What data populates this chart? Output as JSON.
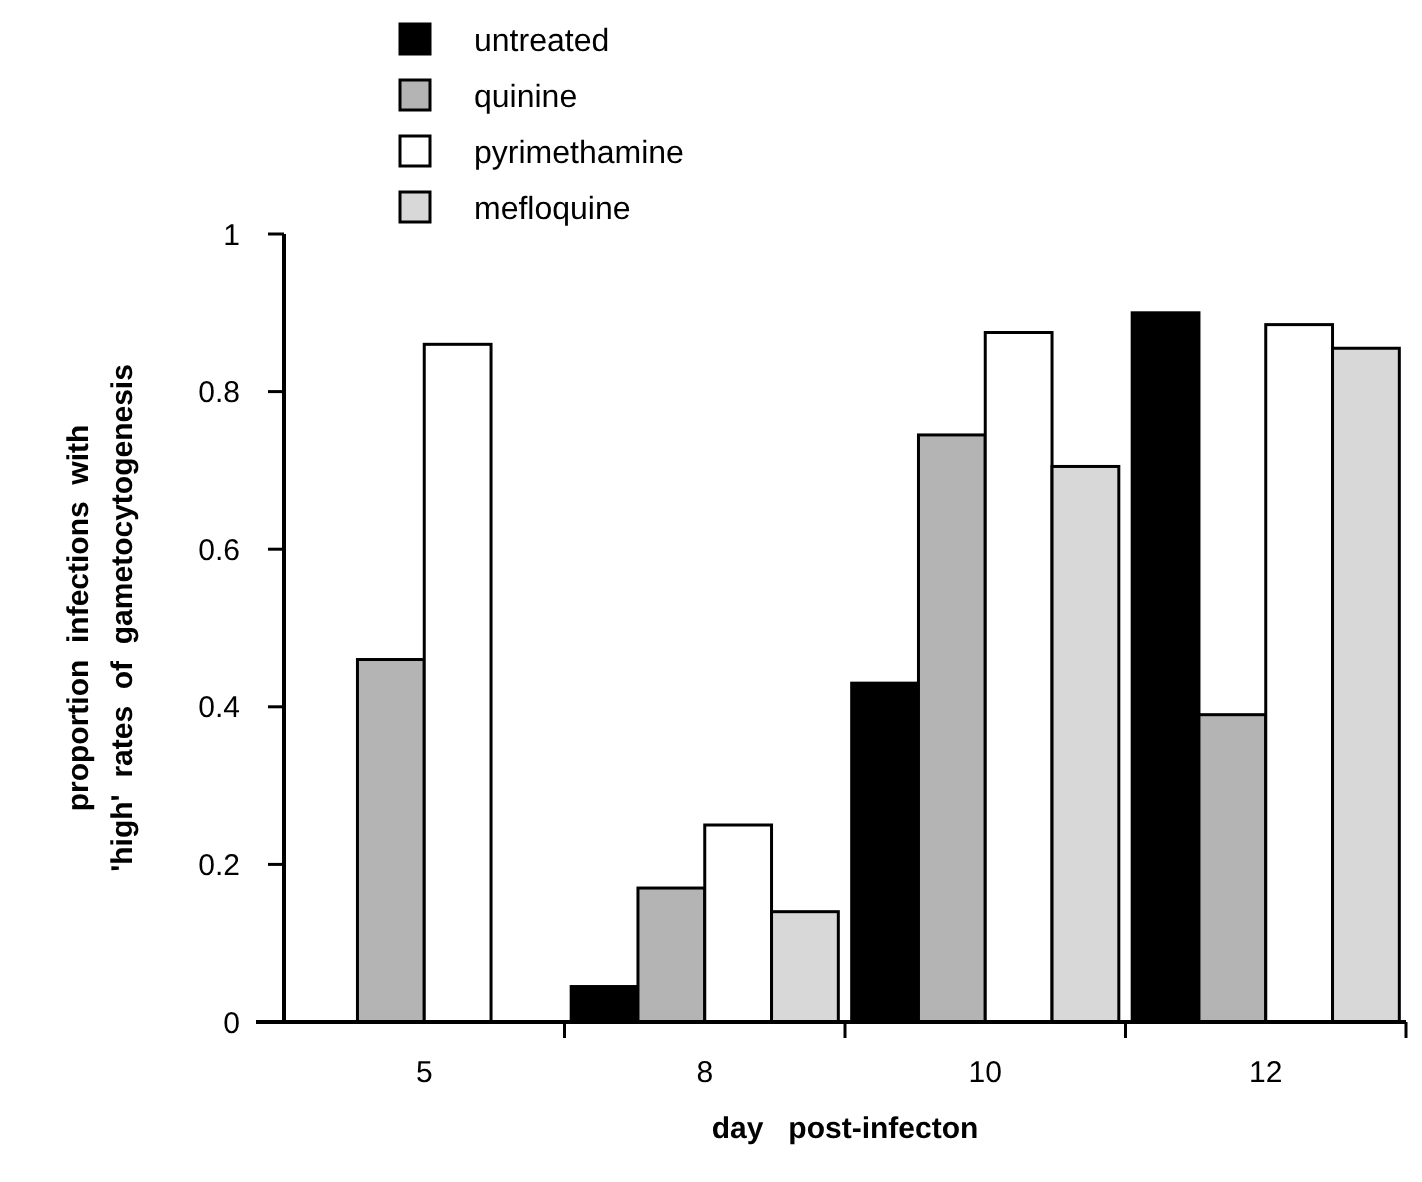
{
  "chart_data": {
    "type": "bar",
    "xlabel": "day   post-infecton",
    "ylabel": "proportion  infections  with\n'high'  rates  of  gametocytogenesis",
    "categories": [
      "5",
      "8",
      "10",
      "12"
    ],
    "series": [
      {
        "name": "untreated",
        "color": "#000000",
        "values": [
          0,
          0.045,
          0.43,
          0.9
        ]
      },
      {
        "name": "quinine",
        "color": "#b4b4b4",
        "values": [
          0.46,
          0.17,
          0.745,
          0.39
        ]
      },
      {
        "name": "pyrimethamine",
        "color": "#ffffff",
        "values": [
          0.86,
          0.25,
          0.875,
          0.885
        ]
      },
      {
        "name": "mefloquine",
        "color": "#d8d8d8",
        "values": [
          0,
          0.14,
          0.705,
          0.855
        ]
      }
    ],
    "ylim": [
      0,
      1
    ],
    "yticks": [
      0,
      0.2,
      0.4,
      0.6,
      0.8,
      1
    ],
    "legend": "top left",
    "grid": false
  }
}
